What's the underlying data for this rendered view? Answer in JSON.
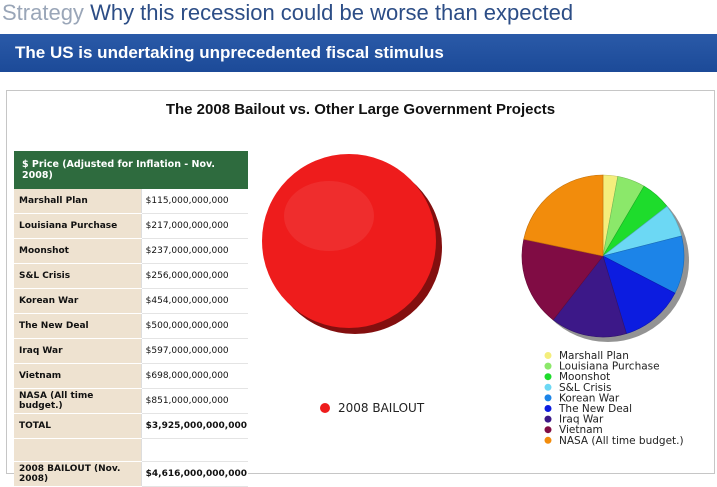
{
  "header": {
    "prefix": "Strategy",
    "title": "Why this recession could be worse than expected"
  },
  "banner": {
    "text": "The US is undertaking unprecedented fiscal stimulus"
  },
  "table": {
    "heading": "$ Price (Adjusted for Inflation - Nov. 2008)",
    "rows": [
      {
        "label": "Marshall Plan",
        "value": "$115,000,000,000"
      },
      {
        "label": "Louisiana Purchase",
        "value": "$217,000,000,000"
      },
      {
        "label": "Moonshot",
        "value": "$237,000,000,000"
      },
      {
        "label": "S&L Crisis",
        "value": "$256,000,000,000"
      },
      {
        "label": "Korean War",
        "value": "$454,000,000,000"
      },
      {
        "label": "The New Deal",
        "value": "$500,000,000,000"
      },
      {
        "label": "Iraq War",
        "value": "$597,000,000,000"
      },
      {
        "label": "Vietnam",
        "value": "$698,000,000,000"
      },
      {
        "label": "NASA (All time budget.)",
        "value": "$851,000,000,000"
      }
    ],
    "total": {
      "label": "TOTAL",
      "value": "$3,925,000,000,000"
    },
    "bailout": {
      "label": "2008 BAILOUT (Nov. 2008)",
      "value": "$4,616,000,000,000"
    }
  },
  "chart_data": [
    {
      "type": "pie",
      "title": "The 2008 Bailout vs. Other Large Government Projects",
      "categories": [
        "2008 BAILOUT"
      ],
      "values": [
        4616000000000
      ],
      "colors": [
        "#ee1c1c"
      ],
      "legend_position": "bottom"
    },
    {
      "type": "pie",
      "categories": [
        "Marshall Plan",
        "Louisiana Purchase",
        "Moonshot",
        "S&L Crisis",
        "Korean War",
        "The New Deal",
        "Iraq War",
        "Vietnam",
        "NASA (All time budget.)"
      ],
      "values": [
        115000000000,
        217000000000,
        237000000000,
        256000000000,
        454000000000,
        500000000000,
        597000000000,
        698000000000,
        851000000000
      ],
      "colors": [
        "#f4ee7c",
        "#8be86a",
        "#1edc2c",
        "#6cd8f4",
        "#1c84e8",
        "#0c1ce0",
        "#3c1888",
        "#800c44",
        "#f28c0c"
      ],
      "legend_position": "bottom"
    }
  ]
}
